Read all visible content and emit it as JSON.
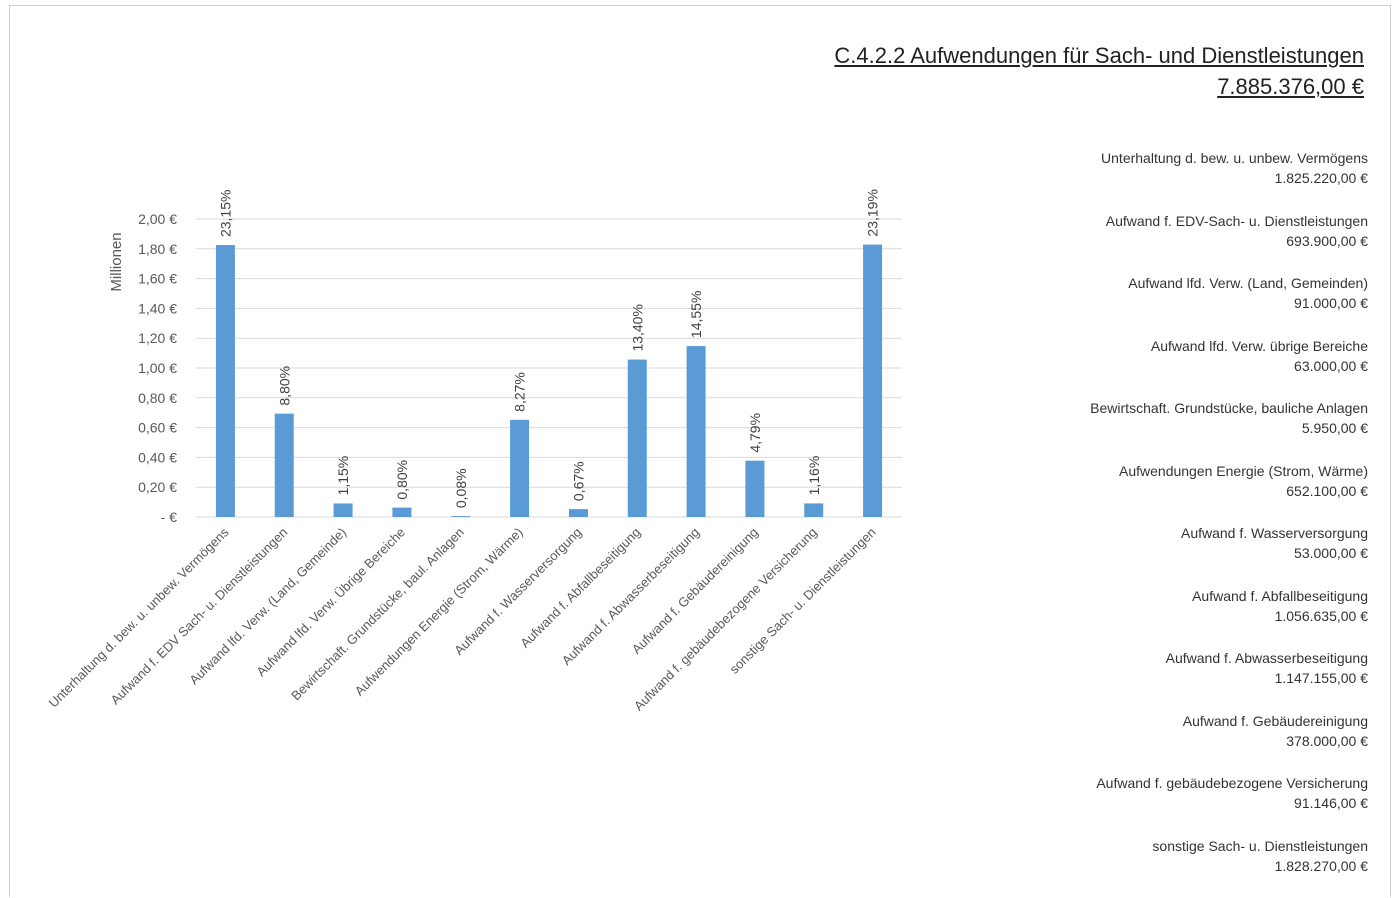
{
  "header": {
    "title": "C.4.2.2 Aufwendungen für Sach- und Dienstleistungen",
    "total": "7.885.376,00 €"
  },
  "legend_items": [
    {
      "label": "Unterhaltung d. bew. u. unbew. Vermögens",
      "amount": "1.825.220,00 €"
    },
    {
      "label": "Aufwand f. EDV-Sach- u. Dienstleistungen",
      "amount": "693.900,00 €"
    },
    {
      "label": "Aufwand lfd. Verw. (Land, Gemeinden)",
      "amount": "91.000,00 €"
    },
    {
      "label": "Aufwand lfd. Verw. übrige Bereiche",
      "amount": "63.000,00 €"
    },
    {
      "label": "Bewirtschaft. Grundstücke, bauliche Anlagen",
      "amount": "5.950,00 €"
    },
    {
      "label": "Aufwendungen Energie (Strom, Wärme)",
      "amount": "652.100,00 €"
    },
    {
      "label": "Aufwand f. Wasserversorgung",
      "amount": "53.000,00 €"
    },
    {
      "label": "Aufwand f. Abfallbeseitigung",
      "amount": "1.056.635,00 €"
    },
    {
      "label": "Aufwand f. Abwasserbeseitigung",
      "amount": "1.147.155,00 €"
    },
    {
      "label": "Aufwand f. Gebäudereinigung",
      "amount": "378.000,00 €"
    },
    {
      "label": "Aufwand f. gebäudebezogene Versicherung",
      "amount": "91.146,00 €"
    },
    {
      "label": "sonstige Sach- u. Dienstleistungen",
      "amount": "1.828.270,00 €"
    }
  ],
  "colors": {
    "bar": "#5b9bd5",
    "grid": "#d9d9d9",
    "text": "#595959"
  },
  "chart_data": {
    "type": "bar",
    "ylabel": "Millionen",
    "ylim": [
      0,
      2.0
    ],
    "yticks": [
      0,
      0.2,
      0.4,
      0.6,
      0.8,
      1.0,
      1.2,
      1.4,
      1.6,
      1.8,
      2.0
    ],
    "ytick_labels": [
      "-  €",
      "0,20 €",
      "0,40 €",
      "0,60 €",
      "0,80 €",
      "1,00 €",
      "1,20 €",
      "1,40 €",
      "1,60 €",
      "1,80 €",
      "2,00 €"
    ],
    "grid": true,
    "categories": [
      "Unterhaltung d. bew. u. unbew. Vermögens",
      "Aufwand f. EDV Sach- u. Dienstleistungen",
      "Aufwand lfd. Verw. (Land, Gemeinde)",
      "Aufwand lfd. Verw. Übrige Bereiche",
      "Bewirtschaft. Grundstücke, baul. Anlagen",
      "Aufwendungen Energie (Strom, Wärme)",
      "Aufwand f. Wasserversorgung",
      "Aufwand f. Abfallbeseitigung",
      "Aufwand f. Abwasserbeseitigung",
      "Aufwand f. Gebäudereinigung",
      "Aufwand f. gebäudebezogene Versicherung",
      "sonstige Sach- u. Dienstleistungen"
    ],
    "values": [
      1.82522,
      0.6939,
      0.091,
      0.063,
      0.00595,
      0.6521,
      0.053,
      1.056635,
      1.147155,
      0.378,
      0.091146,
      1.82827
    ],
    "data_labels": [
      "23,15%",
      "8,80%",
      "1,15%",
      "0,80%",
      "0,08%",
      "8,27%",
      "0,67%",
      "13,40%",
      "14,55%",
      "4,79%",
      "1,16%",
      "23,19%"
    ]
  }
}
